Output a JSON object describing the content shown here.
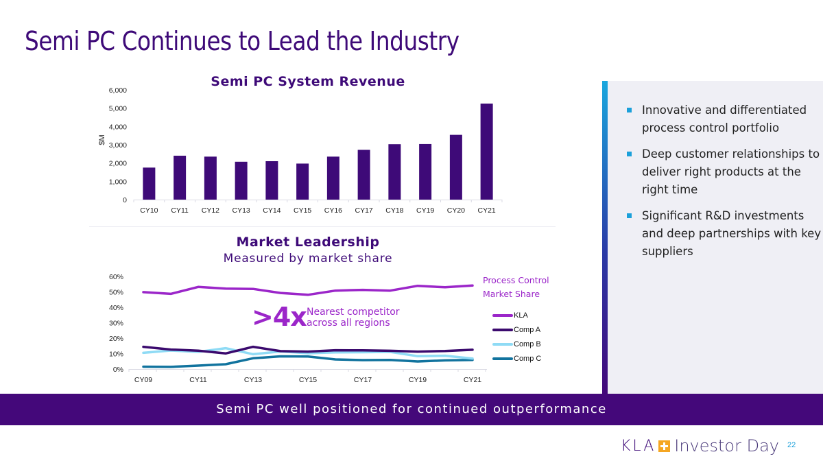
{
  "page": {
    "title": "Semi PC Continues to Lead the Industry",
    "banner": "Semi PC well positioned for continued outperformance",
    "footer": {
      "brand": "KLA",
      "event": "Investor Day",
      "page_number": "22"
    }
  },
  "colors": {
    "brand_purple": "#3e0a78",
    "banner": "#44087a",
    "accent_blue": "#1ba0da",
    "logo_orange": "#f5a623"
  },
  "side_panel": {
    "bullets": [
      "Innovative and differentiated process control portfolio",
      "Deep customer relationships to deliver right products at the right time",
      "Significant R&D investments and deep partnerships with key suppliers"
    ]
  },
  "annotations": {
    "multiple": ">4x",
    "multiple_text_line1": "Nearest competitor",
    "multiple_text_line2": "across all regions",
    "series_label_line1": "Process Control",
    "series_label_line2": "Market Share"
  },
  "chart_data": [
    {
      "type": "bar",
      "title": "Semi PC System Revenue",
      "xlabel": "",
      "ylabel": "$M",
      "ylim": [
        0,
        6000
      ],
      "yticks": [
        0,
        1000,
        2000,
        3000,
        4000,
        5000,
        6000
      ],
      "ytick_labels": [
        "0",
        "1,000",
        "2,000",
        "3,000",
        "4,000",
        "5,000",
        "6,000"
      ],
      "grid": false,
      "categories": [
        "CY10",
        "CY11",
        "CY12",
        "CY13",
        "CY14",
        "CY15",
        "CY16",
        "CY17",
        "CY18",
        "CY19",
        "CY20",
        "CY21"
      ],
      "values": [
        1750,
        2400,
        2350,
        2070,
        2100,
        1970,
        2350,
        2720,
        3030,
        3040,
        3540,
        5250
      ],
      "color": "#3e0a78"
    },
    {
      "type": "line",
      "title": "Market Leadership",
      "subtitle": "Measured by market share",
      "xlabel": "",
      "ylabel": "",
      "ylim": [
        0,
        60
      ],
      "yticks": [
        0,
        10,
        20,
        30,
        40,
        50,
        60
      ],
      "ytick_labels": [
        "0%",
        "10%",
        "20%",
        "30%",
        "40%",
        "50%",
        "60%"
      ],
      "grid": false,
      "legend_position": "right",
      "x": [
        "CY09",
        "CY10",
        "CY11",
        "CY12",
        "CY13",
        "CY14",
        "CY15",
        "CY16",
        "CY17",
        "CY18",
        "CY19",
        "CY20",
        "CY21"
      ],
      "xtick_labels": [
        "CY09",
        "",
        "CY11",
        "",
        "CY13",
        "",
        "CY15",
        "",
        "CY17",
        "",
        "CY19",
        "",
        "CY21"
      ],
      "series": [
        {
          "name": "KLA",
          "color": "#9b26c9",
          "values": [
            49.8,
            48.7,
            53.2,
            52.1,
            51.9,
            49.3,
            48.1,
            50.8,
            51.3,
            50.8,
            53.9,
            53.0,
            54.1
          ]
        },
        {
          "name": "Comp A",
          "color": "#3b0a6e",
          "values": [
            14.4,
            12.6,
            11.9,
            10.1,
            14.4,
            11.6,
            11.3,
            12.2,
            12.1,
            11.8,
            11.3,
            11.7,
            12.5
          ]
        },
        {
          "name": "Comp B",
          "color": "#8fdbf5",
          "values": [
            10.5,
            12.0,
            11.1,
            13.5,
            9.6,
            11.4,
            10.2,
            10.8,
            10.9,
            11.1,
            8.3,
            8.6,
            6.8
          ]
        },
        {
          "name": "Comp C",
          "color": "#11739e",
          "values": [
            1.5,
            1.4,
            2.2,
            3.1,
            7.0,
            8.2,
            8.1,
            6.2,
            5.8,
            5.9,
            4.9,
            5.6,
            5.9
          ]
        }
      ]
    }
  ]
}
